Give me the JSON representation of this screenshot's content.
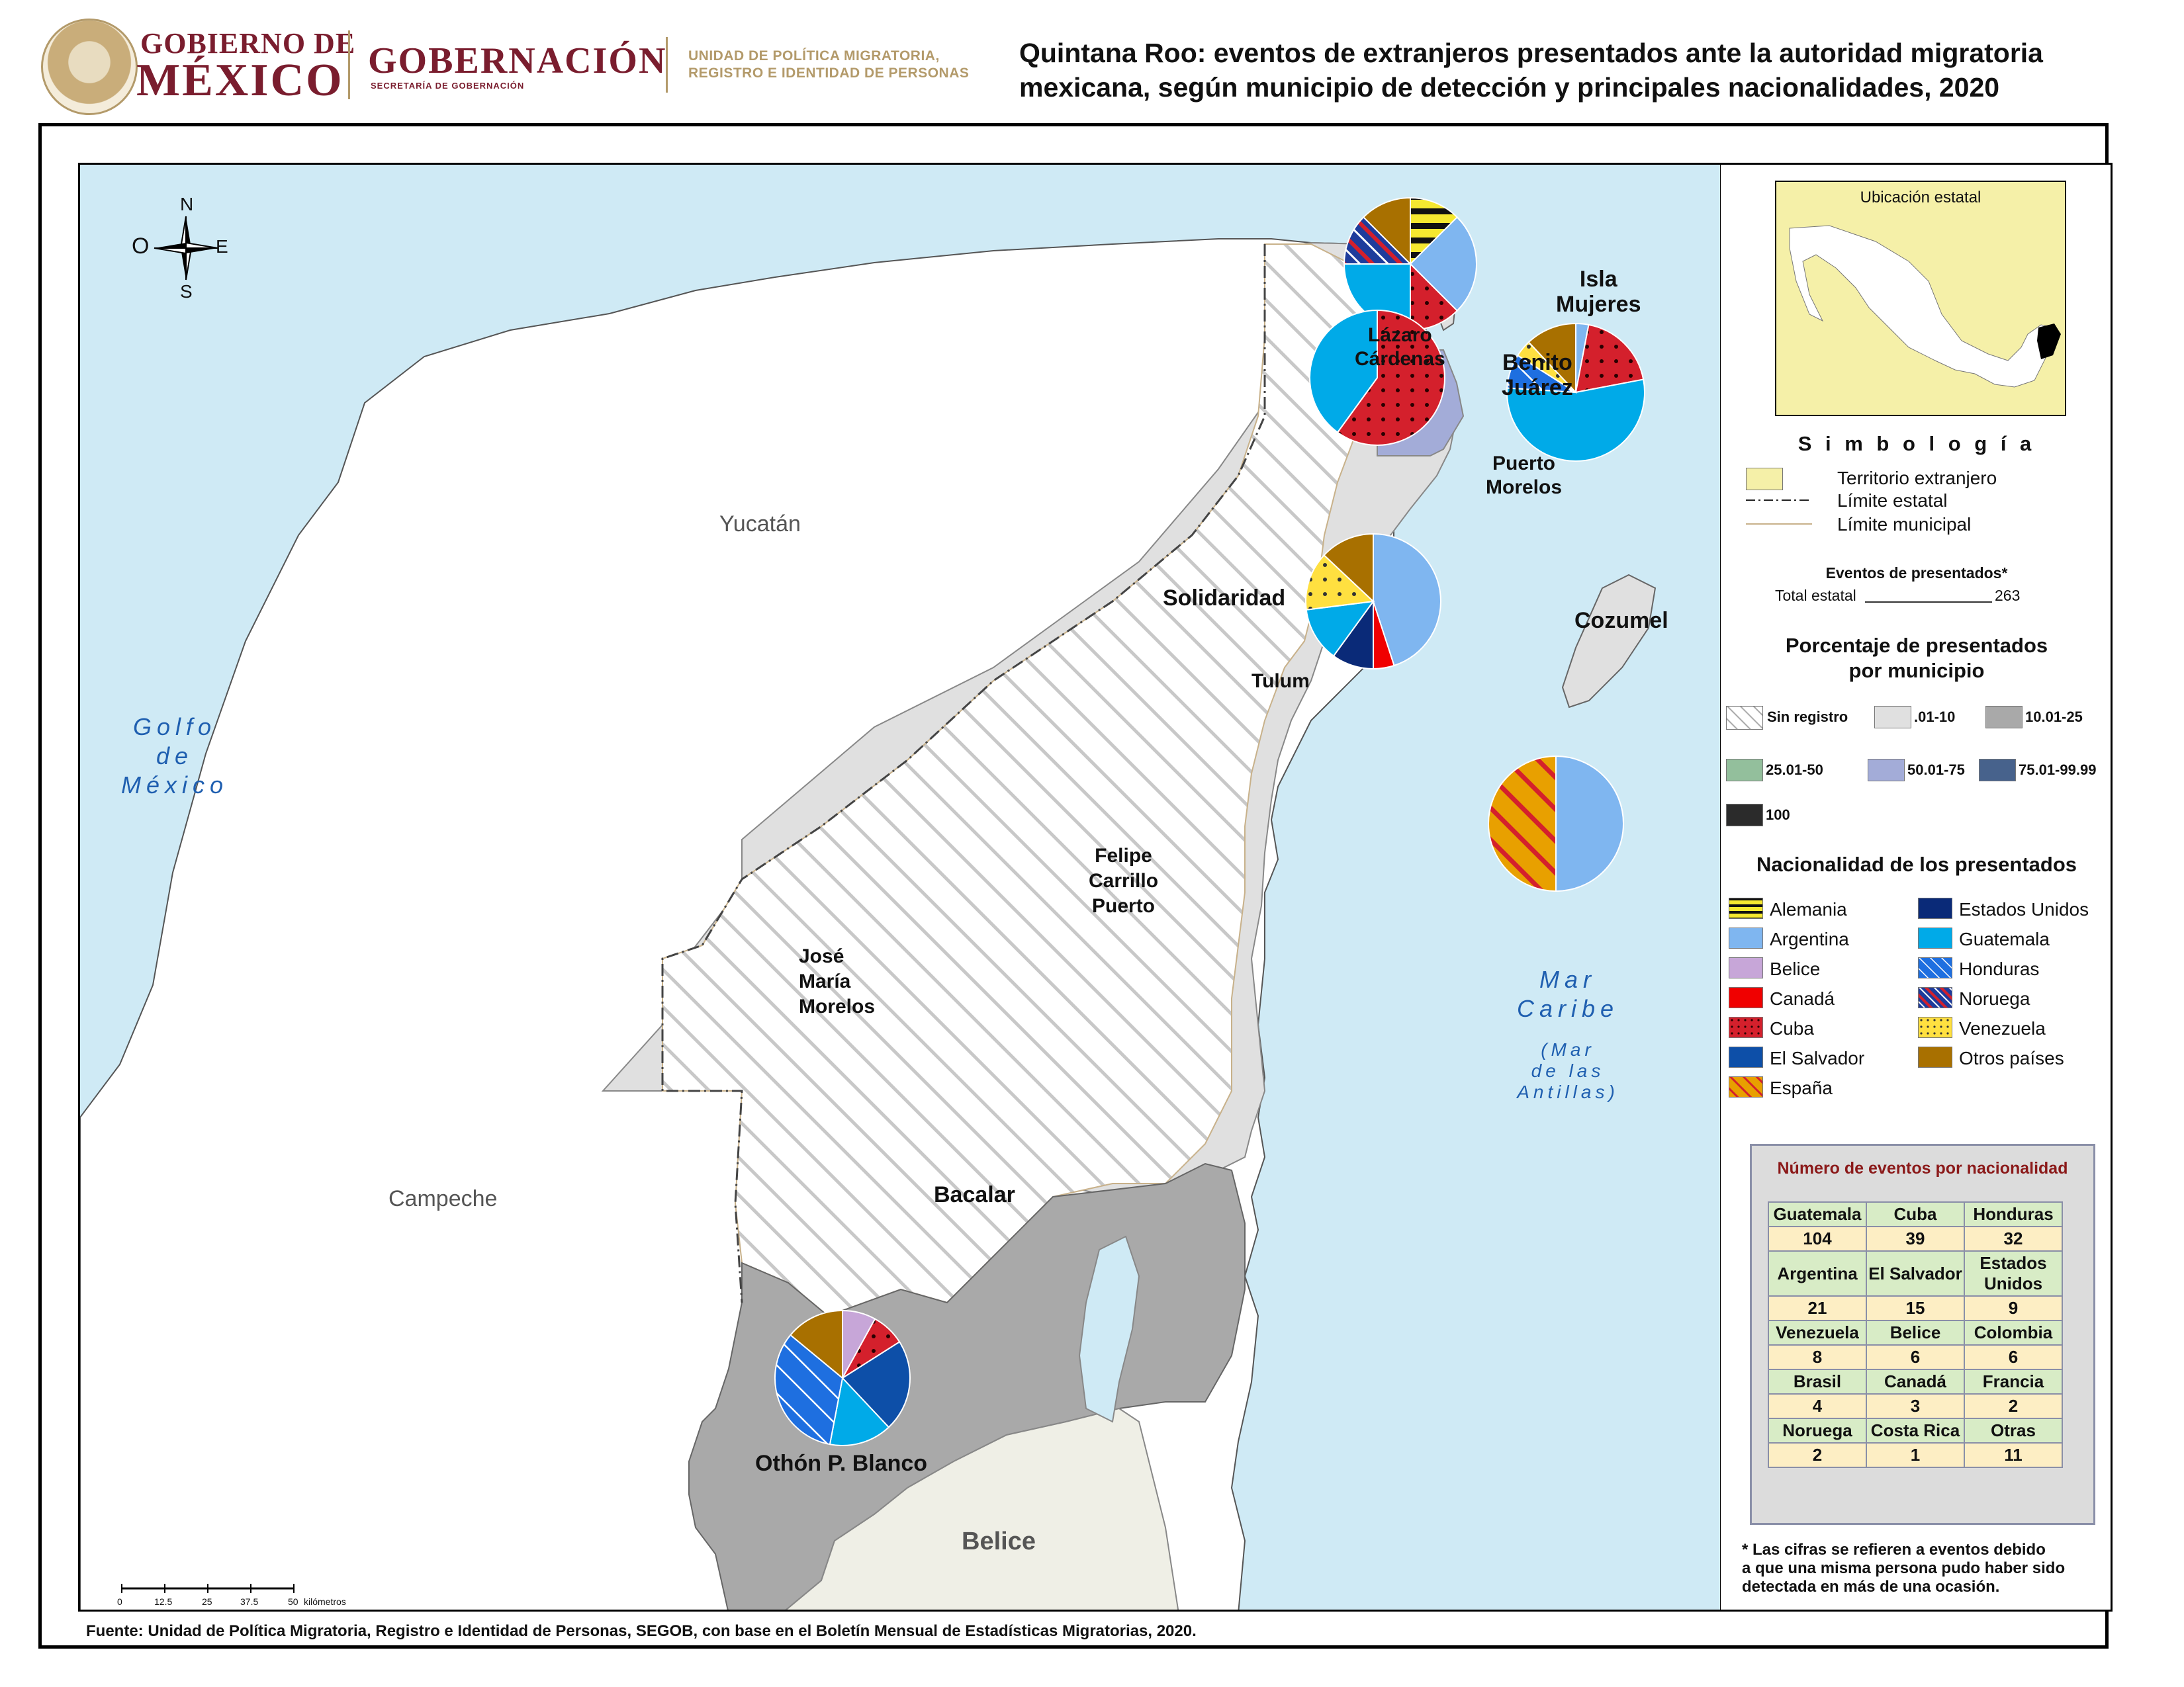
{
  "header": {
    "gob_line1": "GOBIERNO DE",
    "gob_line2": "MÉXICO",
    "gobernacion": "GOBERNACIÓN",
    "gobernacion_sub": "SECRETARÍA DE GOBERNACIÓN",
    "unidad_line1": "UNIDAD DE POLÍTICA MIGRATORIA,",
    "unidad_line2": "REGISTRO E IDENTIDAD DE PERSONAS",
    "title_line1": "Quintana Roo: eventos de extranjeros presentados ante la autoridad migratoria",
    "title_line2": "mexicana, según municipio de detección y principales nacionalidades, 2020"
  },
  "map": {
    "compass": {
      "n": "N",
      "s": "S",
      "e": "E",
      "o": "O"
    },
    "states": {
      "yucatan": "Yucatán",
      "campeche": "Campeche",
      "belice": "Belice"
    },
    "seas": {
      "golfo": [
        "Golfo",
        "de",
        "México"
      ],
      "caribe": [
        "Mar",
        "Caribe"
      ],
      "antillas": [
        "(Mar",
        "de las",
        "Antillas)"
      ]
    },
    "municipios": {
      "isla_mujeres": [
        "Isla",
        "Mujeres"
      ],
      "lazaro": [
        "Lázaro",
        "Cárdenas"
      ],
      "benito": [
        "Benito",
        "Juárez"
      ],
      "puerto": [
        "Puerto",
        "Morelos"
      ],
      "solidaridad": "Solidaridad",
      "cozumel": "Cozumel",
      "tulum": "Tulum",
      "fcp": [
        "Felipe",
        "Carrillo",
        "Puerto"
      ],
      "jmm": [
        "José",
        "María",
        "Morelos"
      ],
      "bacalar": "Bacalar",
      "opb": "Othón P. Blanco"
    },
    "scale": {
      "ticks": [
        "0",
        "12.5",
        "25",
        "37.5",
        "50"
      ],
      "unit": "kilómetros"
    },
    "pies": [
      {
        "municipio": "Lázaro Cárdenas",
        "slices": [
          {
            "nat": "Alemania",
            "pct": 12.5
          },
          {
            "nat": "Argentina",
            "pct": 25
          },
          {
            "nat": "Cuba",
            "pct": 12.5
          },
          {
            "nat": "Guatemala",
            "pct": 25
          },
          {
            "nat": "Noruega",
            "pct": 12.5
          },
          {
            "nat": "Otros países",
            "pct": 12.5
          }
        ]
      },
      {
        "municipio": "Benito Juárez",
        "slices": [
          {
            "nat": "Argentina",
            "pct": 3
          },
          {
            "nat": "Cuba",
            "pct": 19
          },
          {
            "nat": "Guatemala",
            "pct": 54
          },
          {
            "nat": "Honduras",
            "pct": 8
          },
          {
            "nat": "Venezuela",
            "pct": 4
          },
          {
            "nat": "Otros países",
            "pct": 12
          }
        ]
      },
      {
        "municipio": "Puerto Morelos",
        "slices": [
          {
            "nat": "Cuba",
            "pct": 60
          },
          {
            "nat": "Guatemala",
            "pct": 40
          }
        ]
      },
      {
        "municipio": "Solidaridad",
        "slices": [
          {
            "nat": "Argentina",
            "pct": 45
          },
          {
            "nat": "Canadá",
            "pct": 5
          },
          {
            "nat": "Estados Unidos",
            "pct": 10
          },
          {
            "nat": "Guatemala",
            "pct": 13
          },
          {
            "nat": "Venezuela",
            "pct": 14
          },
          {
            "nat": "Otros países",
            "pct": 13
          }
        ]
      },
      {
        "municipio": "Cozumel",
        "slices": [
          {
            "nat": "Argentina",
            "pct": 50
          },
          {
            "nat": "España",
            "pct": 50
          }
        ]
      },
      {
        "municipio": "Othón P. Blanco",
        "slices": [
          {
            "nat": "Belice",
            "pct": 8
          },
          {
            "nat": "Cuba",
            "pct": 8
          },
          {
            "nat": "El Salvador",
            "pct": 22
          },
          {
            "nat": "Guatemala",
            "pct": 15
          },
          {
            "nat": "Honduras",
            "pct": 33
          },
          {
            "nat": "Otros países",
            "pct": 14
          }
        ]
      }
    ]
  },
  "legend": {
    "ubicacion": "Ubicación estatal",
    "simbologia": "S i m b o l o g í a",
    "territorio": "Territorio extranjero",
    "lim_estatal": "Límite estatal",
    "lim_municipal": "Límite municipal",
    "eventos_title": "Eventos de presentados*",
    "total_label": "Total estatal",
    "total_value": "263",
    "porc_title_1": "Porcentaje de presentados",
    "porc_title_2": "por municipio",
    "classes": [
      {
        "label": "Sin registro",
        "color": "hatch"
      },
      {
        "label": ".01-10",
        "color": "#e0e0e0"
      },
      {
        "label": "10.01-25",
        "color": "#a9a9a9"
      },
      {
        "label": "25.01-50",
        "color": "#93bf9c"
      },
      {
        "label": "50.01-75",
        "color": "#a3acd8"
      },
      {
        "label": "75.01-99.99",
        "color": "#47628c"
      },
      {
        "label": "100",
        "color": "#2b2b2b"
      }
    ],
    "nac_title": "Nacionalidad de los presentados",
    "nacs_left": [
      "Alemania",
      "Argentina",
      "Belice",
      "Canadá",
      "Cuba",
      "El Salvador",
      "España"
    ],
    "nacs_right": [
      "Estados Unidos",
      "Guatemala",
      "Honduras",
      "Noruega",
      "Venezuela",
      "Otros países"
    ],
    "nac_colors": {
      "Alemania": "#f5e830",
      "Argentina": "#7fb6f0",
      "Belice": "#c7a6d8",
      "Canadá": "#f00000",
      "Cuba": "#d4202c",
      "El Salvador": "#0d4fa8",
      "España": "#e8a000",
      "Estados Unidos": "#0a2a78",
      "Guatemala": "#00aae8",
      "Honduras": "#1e6fe0",
      "Noruega": "#1e3c9c",
      "Venezuela": "#ffe040",
      "Otros países": "#a87000"
    },
    "table_title": "Número de eventos por nacionalidad",
    "table_rows": [
      {
        "h": [
          "Guatemala",
          "Cuba",
          "Honduras"
        ],
        "v": [
          "104",
          "39",
          "32"
        ]
      },
      {
        "h": [
          "Argentina",
          "El Salvador",
          "Estados Unidos"
        ],
        "v": [
          "21",
          "15",
          "9"
        ]
      },
      {
        "h": [
          "Venezuela",
          "Belice",
          "Colombia"
        ],
        "v": [
          "8",
          "6",
          "6"
        ]
      },
      {
        "h": [
          "Brasil",
          "Canadá",
          "Francia"
        ],
        "v": [
          "4",
          "3",
          "2"
        ]
      },
      {
        "h": [
          "Noruega",
          "Costa Rica",
          "Otras"
        ],
        "v": [
          "2",
          "1",
          "11"
        ]
      }
    ],
    "note": [
      "* Las cifras se refieren a eventos debido",
      "a que una misma persona pudo haber sido",
      "detectada en más de una ocasión."
    ]
  },
  "footer": "Fuente: Unidad de Política Migratoria, Registro e Identidad de Personas, SEGOB, con base en el Boletín Mensual de Estadísticas Migratorias, 2020."
}
